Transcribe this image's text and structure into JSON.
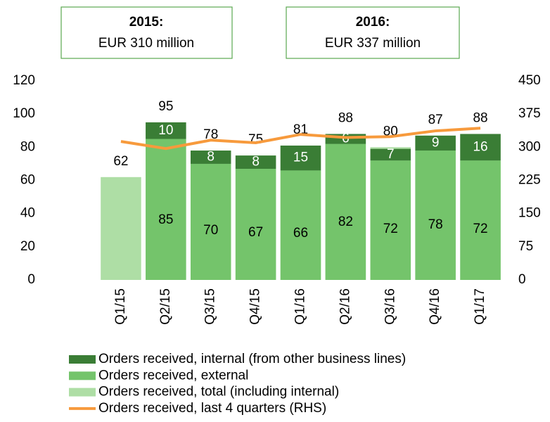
{
  "chart_data": {
    "type": "bar",
    "annotations": [
      {
        "title": "2015:",
        "text": "EUR 310 million"
      },
      {
        "title": "2016:",
        "text": "EUR 337 million"
      }
    ],
    "categories": [
      "Q1/15",
      "Q2/15",
      "Q3/15",
      "Q4/15",
      "Q1/16",
      "Q2/16",
      "Q3/16",
      "Q4/16",
      "Q1/17"
    ],
    "series": [
      {
        "name": "Orders received, internal (from other business lines)",
        "color": "#3a7d35",
        "values": [
          null,
          10,
          8,
          8,
          15,
          6,
          7,
          9,
          16
        ]
      },
      {
        "name": "Orders received, external",
        "color": "#74c46b",
        "values": [
          null,
          85,
          70,
          67,
          66,
          82,
          72,
          78,
          72
        ]
      },
      {
        "name": "Orders received, total (including internal)",
        "color": "#aedea5",
        "values": [
          62,
          95,
          78,
          75,
          81,
          88,
          80,
          87,
          88
        ]
      },
      {
        "name": "Orders received, last 4 quarters (RHS)",
        "color": "#f79a3c",
        "axis": "y2",
        "values": [
          313,
          297,
          316,
          310,
          329,
          322,
          324,
          337,
          343
        ]
      }
    ],
    "ylim": [
      0,
      120
    ],
    "yticks": [
      0,
      20,
      40,
      60,
      80,
      100,
      120
    ],
    "y2lim": [
      0,
      450
    ],
    "y2ticks": [
      0,
      75,
      150,
      225,
      300,
      375,
      450
    ]
  }
}
